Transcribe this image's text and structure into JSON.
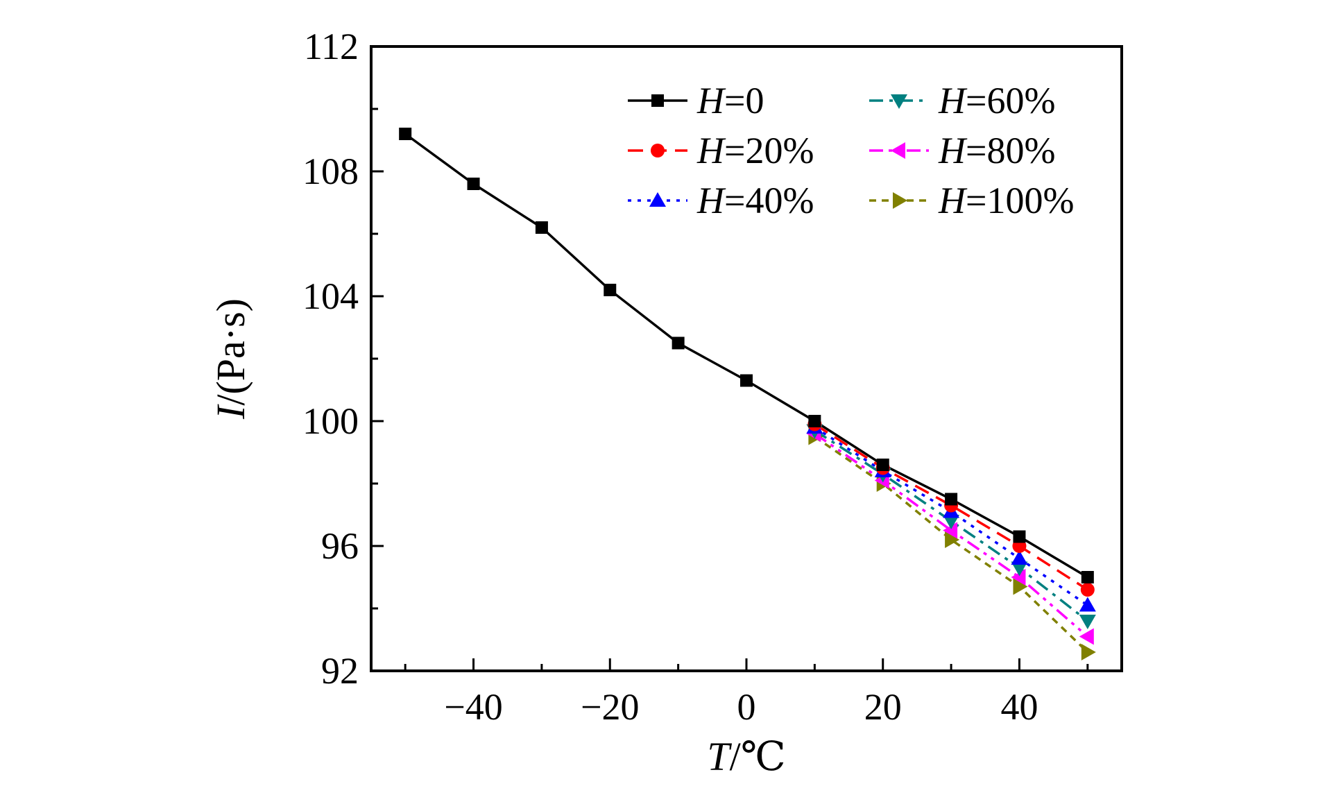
{
  "chart_data": {
    "type": "line",
    "xlabel": "T/℃",
    "xlabel_italic": "T",
    "xlabel_rest": "/℃",
    "ylabel": "I/(Pa·s)",
    "ylabel_italic": "I",
    "ylabel_rest": "/(Pa·s)",
    "xlim": [
      -55,
      55
    ],
    "ylim": [
      92,
      112
    ],
    "xticks": [
      -40,
      -20,
      0,
      20,
      40
    ],
    "xtick_labels": [
      "−40",
      "−20",
      "0",
      "20",
      "40"
    ],
    "yticks": [
      92,
      96,
      100,
      104,
      108,
      112
    ],
    "ytick_labels": [
      "92",
      "96",
      "100",
      "104",
      "108",
      "112"
    ],
    "grid": false,
    "legend_position": "top-right",
    "series": [
      {
        "name": "H=0",
        "name_italic": "H",
        "name_rest": "=0",
        "color": "#000000",
        "marker": "square",
        "dash": "solid",
        "x": [
          -50,
          -40,
          -30,
          -20,
          -10,
          0,
          10,
          20,
          30,
          40,
          50
        ],
        "y": [
          109.2,
          107.6,
          106.2,
          104.2,
          102.5,
          101.3,
          100.0,
          98.6,
          97.5,
          96.3,
          95.0
        ]
      },
      {
        "name": "H=20%",
        "name_italic": "H",
        "name_rest": "=20%",
        "color": "#ff0000",
        "marker": "circle",
        "dash": "dash",
        "x": [
          10,
          20,
          30,
          40,
          50
        ],
        "y": [
          99.9,
          98.5,
          97.3,
          96.0,
          94.6
        ]
      },
      {
        "name": "H=40%",
        "name_italic": "H",
        "name_rest": "=40%",
        "color": "#0000ff",
        "marker": "triangle-up",
        "dash": "dot",
        "x": [
          10,
          20,
          30,
          40,
          50
        ],
        "y": [
          99.8,
          98.4,
          97.1,
          95.6,
          94.1
        ]
      },
      {
        "name": "H=60%",
        "name_italic": "H",
        "name_rest": "=60%",
        "color": "#008080",
        "marker": "triangle-down",
        "dash": "dashdot",
        "x": [
          10,
          20,
          30,
          40,
          50
        ],
        "y": [
          99.7,
          98.3,
          96.8,
          95.3,
          93.6
        ]
      },
      {
        "name": "H=80%",
        "name_italic": "H",
        "name_rest": "=80%",
        "color": "#ff00ff",
        "marker": "triangle-left",
        "dash": "dashdotdot",
        "x": [
          10,
          20,
          30,
          40,
          50
        ],
        "y": [
          99.6,
          98.1,
          96.5,
          95.0,
          93.1
        ]
      },
      {
        "name": "H=100%",
        "name_italic": "H",
        "name_rest": "=100%",
        "color": "#808000",
        "marker": "triangle-right",
        "dash": "shortdash",
        "x": [
          10,
          20,
          30,
          40,
          50
        ],
        "y": [
          99.5,
          98.0,
          96.2,
          94.7,
          92.6
        ]
      }
    ]
  }
}
